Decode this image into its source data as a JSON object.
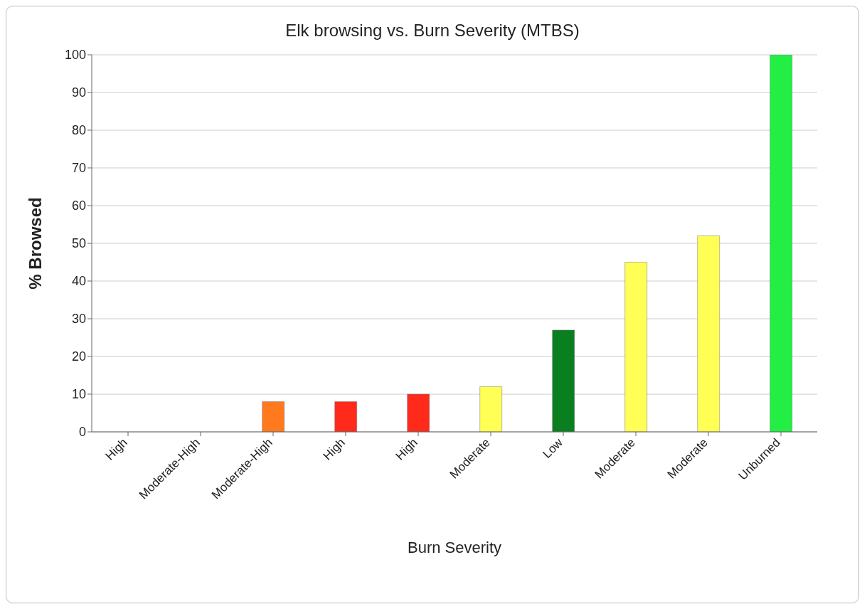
{
  "chart_data": {
    "type": "bar",
    "title": "Elk browsing vs. Burn Severity (MTBS)",
    "xlabel": "Burn Severity",
    "ylabel": "% Browsed",
    "categories": [
      "High",
      "Moderate-High",
      "Moderate-High",
      "High",
      "High",
      "Moderate",
      "Low",
      "Moderate",
      "Moderate",
      "Unburned"
    ],
    "values": [
      0,
      0,
      8,
      8,
      10,
      12,
      27,
      45,
      52,
      100
    ],
    "colors": [
      "#c03000",
      "#c03000",
      "#ff7a1f",
      "#ff2a1a",
      "#ff2a1a",
      "#ffff55",
      "#0a7f1f",
      "#ffff55",
      "#ffff55",
      "#22ee44"
    ],
    "ylim": [
      0,
      100
    ],
    "yticks": [
      0,
      10,
      20,
      30,
      40,
      50,
      60,
      70,
      80,
      90,
      100
    ],
    "grid": "y"
  }
}
